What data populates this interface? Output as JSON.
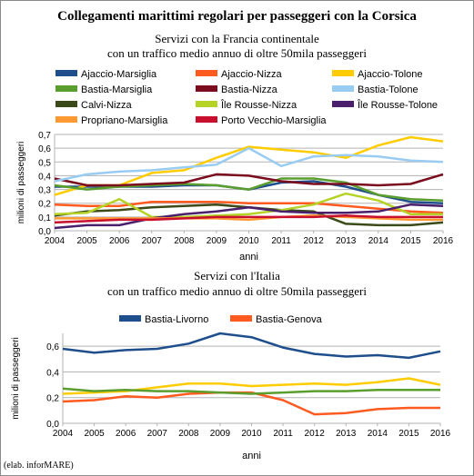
{
  "title": "Collegamenti marittimi regolari per passeggeri con la Corsica",
  "credit": "(elab. inforMARE)",
  "chart_data": [
    {
      "type": "line",
      "subtitle_line1": "Servizi con la Francia continentale",
      "subtitle_line2": "con un traffico medio annuo di oltre 50mila passeggeri",
      "xlabel": "anni",
      "ylabel": "milioni di passeggeri",
      "ylim": [
        0,
        0.7
      ],
      "yticks": [
        "0,0",
        "0,1",
        "0,2",
        "0,3",
        "0,4",
        "0,5",
        "0,6",
        "0,7"
      ],
      "grid": true,
      "legend_position": "top",
      "x": [
        "2004",
        "2005",
        "2006",
        "2007",
        "2008",
        "2009",
        "2010",
        "2011",
        "2012",
        "2013",
        "2014",
        "2015",
        "2016"
      ],
      "series": [
        {
          "name": "Ajaccio-Marsiglia",
          "color": "#1f4e8c",
          "values": [
            0.32,
            0.32,
            0.32,
            0.32,
            0.33,
            0.33,
            0.3,
            0.35,
            0.36,
            0.32,
            0.26,
            0.21,
            0.2
          ]
        },
        {
          "name": "Ajaccio-Nizza",
          "color": "#ff5a1f",
          "values": [
            0.19,
            0.18,
            0.18,
            0.21,
            0.21,
            0.21,
            0.2,
            0.2,
            0.2,
            0.18,
            0.16,
            0.14,
            0.13
          ]
        },
        {
          "name": "Ajaccio-Tolone",
          "color": "#ffcc00",
          "values": [
            0.26,
            0.33,
            0.33,
            0.42,
            0.44,
            0.53,
            0.61,
            0.59,
            0.57,
            0.53,
            0.62,
            0.68,
            0.65
          ]
        },
        {
          "name": "Bastia-Marsiglia",
          "color": "#5a9e2e",
          "values": [
            0.33,
            0.3,
            0.32,
            0.33,
            0.34,
            0.33,
            0.3,
            0.38,
            0.38,
            0.35,
            0.26,
            0.23,
            0.22
          ]
        },
        {
          "name": "Bastia-Nizza",
          "color": "#7a0c1e",
          "values": [
            0.38,
            0.33,
            0.33,
            0.34,
            0.35,
            0.41,
            0.4,
            0.36,
            0.34,
            0.34,
            0.33,
            0.34,
            0.41
          ]
        },
        {
          "name": "Bastia-Tolone",
          "color": "#99ccf2",
          "values": [
            0.36,
            0.41,
            0.43,
            0.44,
            0.46,
            0.48,
            0.6,
            0.47,
            0.54,
            0.55,
            0.54,
            0.51,
            0.5
          ]
        },
        {
          "name": "Calvi-Nizza",
          "color": "#3a4a18",
          "values": [
            0.11,
            0.14,
            0.15,
            0.17,
            0.18,
            0.19,
            0.17,
            0.15,
            0.14,
            0.05,
            0.04,
            0.04,
            0.06
          ]
        },
        {
          "name": "Île Rousse-Nizza",
          "color": "#b5d327",
          "values": [
            0.12,
            0.13,
            0.23,
            0.1,
            0.1,
            0.11,
            0.12,
            0.15,
            0.19,
            0.27,
            0.22,
            0.12,
            0.12
          ]
        },
        {
          "name": "Île Rousse-Tolone",
          "color": "#4a1f6b",
          "values": [
            0.02,
            0.04,
            0.04,
            0.09,
            0.12,
            0.14,
            0.17,
            0.14,
            0.13,
            0.13,
            0.14,
            0.19,
            0.18
          ]
        },
        {
          "name": "Propriano-Marsiglia",
          "color": "#ff9933",
          "values": [
            0.09,
            0.09,
            0.09,
            0.09,
            0.09,
            0.09,
            0.08,
            0.1,
            0.11,
            0.1,
            0.09,
            0.08,
            0.08
          ]
        },
        {
          "name": "Porto Vecchio-Marsiglia",
          "color": "#c8102e",
          "values": [
            0.06,
            0.07,
            0.08,
            0.08,
            0.09,
            0.1,
            0.1,
            0.1,
            0.1,
            0.11,
            0.1,
            0.1,
            0.1
          ]
        }
      ]
    },
    {
      "type": "line",
      "subtitle_line1": "Servizi con l'Italia",
      "subtitle_line2": "con un traffico medio annuo di oltre 50mila passeggeri",
      "xlabel": "anni",
      "ylabel": "milioni di passeggeri",
      "ylim": [
        0,
        0.7
      ],
      "yticks": [
        "0,0",
        "0,2",
        "0,4",
        "0,6"
      ],
      "grid": true,
      "legend_position": "top",
      "x": [
        "2004",
        "2005",
        "2006",
        "2007",
        "2008",
        "2009",
        "2010",
        "2011",
        "2012",
        "2013",
        "2014",
        "2015",
        "2016"
      ],
      "series": [
        {
          "name": "Bastia-Livorno",
          "color": "#1f4e8c",
          "values": [
            0.58,
            0.55,
            0.57,
            0.58,
            0.62,
            0.7,
            0.67,
            0.59,
            0.54,
            0.52,
            0.53,
            0.51,
            0.56
          ]
        },
        {
          "name": "Bastia-Genova",
          "color": "#ff5a1f",
          "values": [
            0.17,
            0.18,
            0.21,
            0.2,
            0.23,
            0.24,
            0.24,
            0.18,
            0.07,
            0.08,
            0.11,
            0.12,
            0.12
          ]
        },
        {
          "name": "",
          "color": "#ffcc00",
          "values": [
            0.23,
            0.24,
            0.25,
            0.28,
            0.31,
            0.31,
            0.29,
            0.3,
            0.31,
            0.3,
            0.32,
            0.35,
            0.3
          ]
        },
        {
          "name": "",
          "color": "#5a9e2e",
          "values": [
            0.27,
            0.25,
            0.26,
            0.25,
            0.25,
            0.24,
            0.23,
            0.24,
            0.25,
            0.25,
            0.26,
            0.26,
            0.26
          ]
        }
      ]
    }
  ]
}
